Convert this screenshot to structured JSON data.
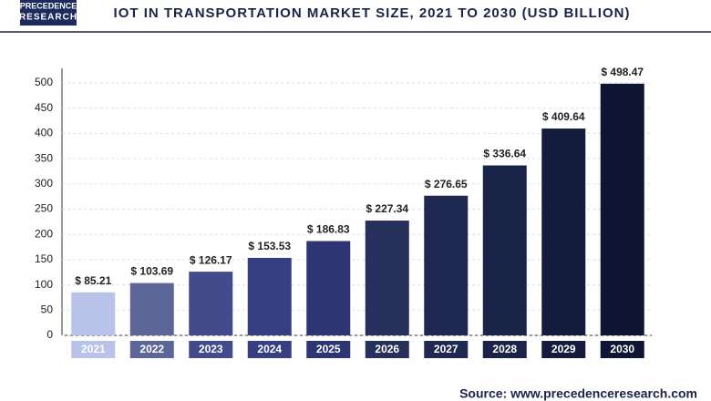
{
  "logo": [
    "PRECEDENCE",
    "RESEARCH"
  ],
  "chart_data": {
    "type": "bar",
    "title": "IOT IN TRANSPORTATION MARKET SIZE, 2021 TO 2030 (USD BILLION)",
    "categories": [
      "2021",
      "2022",
      "2023",
      "2024",
      "2025",
      "2026",
      "2027",
      "2028",
      "2029",
      "2030"
    ],
    "values": [
      85.21,
      103.69,
      126.17,
      153.53,
      186.83,
      227.34,
      276.65,
      336.64,
      409.64,
      498.47
    ],
    "value_labels": [
      "$ 85.21",
      "$ 103.69",
      "$ 126.17",
      "$ 153.53",
      "$ 186.83",
      "$ 227.34",
      "$ 276.65",
      "$ 336.64",
      "$ 409.64",
      "$ 498.47"
    ],
    "colors": [
      "#b9c3ea",
      "#5d6699",
      "#434b8c",
      "#363f82",
      "#2d3572",
      "#26305a",
      "#1f2850",
      "#1a2348",
      "#141c3d",
      "#0e1633"
    ],
    "ylim": [
      0,
      500
    ],
    "yticks": [
      0,
      50,
      100,
      150,
      200,
      250,
      300,
      350,
      400,
      450,
      500
    ],
    "grid": true,
    "source": "Source: www.precedenceresearch.com"
  }
}
